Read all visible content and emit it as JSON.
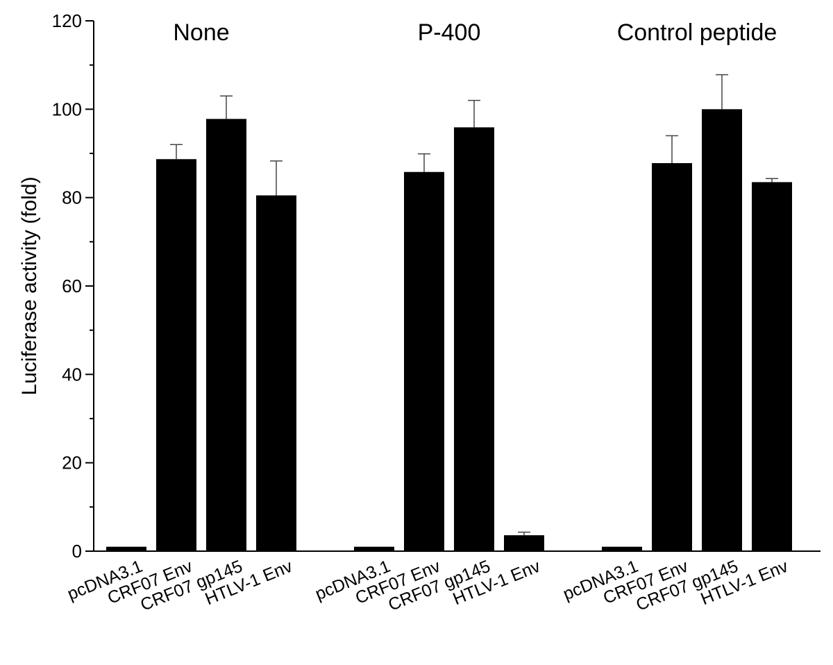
{
  "chart_data": {
    "type": "bar",
    "ylabel": "Luciferase activity (fold)",
    "ylim": [
      0,
      120
    ],
    "y_ticks": [
      0,
      20,
      40,
      60,
      80,
      100,
      120
    ],
    "y_minor_step": 10,
    "grid": false,
    "bar_color": "#000000",
    "groups": [
      {
        "label": "None",
        "categories": [
          "pcDNA3.1",
          "CRF07 Env",
          "CRF07 gp145",
          "HTLV-1 Env"
        ],
        "values": [
          1,
          88.7,
          97.8,
          80.5
        ],
        "errors": [
          0,
          3.3,
          5.2,
          7.8
        ]
      },
      {
        "label": "P-400",
        "categories": [
          "pcDNA3.1",
          "CRF07 Env",
          "CRF07 gp145",
          "HTLV-1 Env"
        ],
        "values": [
          1,
          85.8,
          95.9,
          3.6
        ],
        "errors": [
          0,
          4.1,
          6.1,
          0.7
        ]
      },
      {
        "label": "Control peptide",
        "categories": [
          "pcDNA3.1",
          "CRF07 Env",
          "CRF07 gp145",
          "HTLV-1 Env"
        ],
        "values": [
          1,
          87.8,
          100,
          83.5
        ],
        "errors": [
          0,
          6.2,
          7.8,
          0.8
        ]
      }
    ]
  }
}
